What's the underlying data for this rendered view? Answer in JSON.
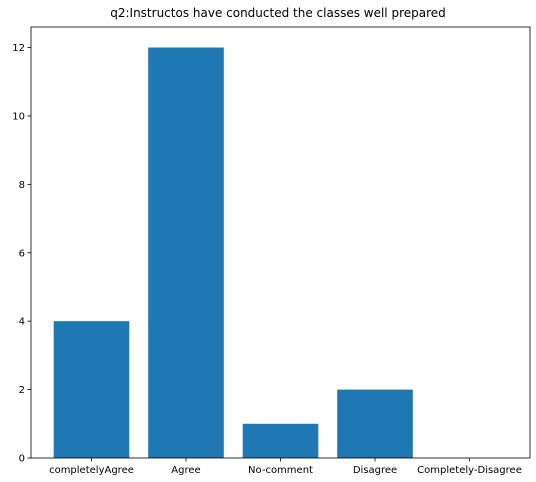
{
  "chart_data": {
    "type": "bar",
    "title": "q2:Instructos have conducted the classes well prepared",
    "categories": [
      "completelyAgree",
      "Agree",
      "No-comment",
      "Disagree",
      "Completely-Disagree"
    ],
    "values": [
      4,
      12,
      1,
      2,
      0
    ],
    "xlabel": "",
    "ylabel": "",
    "ylim": [
      0,
      12.6
    ],
    "yticks": [
      0,
      2,
      4,
      6,
      8,
      10,
      12
    ],
    "bar_color": "#1f77b4",
    "grid": false,
    "legend": "none"
  }
}
